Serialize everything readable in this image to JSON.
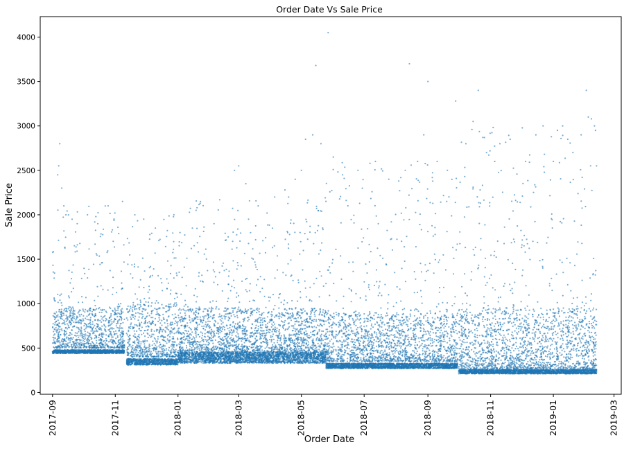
{
  "chart_data": {
    "type": "scatter",
    "title": "Order Date Vs Sale Price",
    "xlabel": "Order Date",
    "ylabel": "Sale Price",
    "xlim": [
      "2017-08-20",
      "2019-03-08"
    ],
    "ylim": [
      -20,
      4230
    ],
    "x_ticks": [
      "2017-09",
      "2017-11",
      "2018-01",
      "2018-03",
      "2018-05",
      "2018-07",
      "2018-09",
      "2018-11",
      "2019-01",
      "2019-03"
    ],
    "y_ticks": [
      0,
      500,
      1000,
      1500,
      2000,
      2500,
      3000,
      3500,
      4000
    ],
    "grid": false,
    "legend": "none",
    "marker_color": "#1f77b4",
    "marker_alpha": 0.6,
    "x_range_of_data": [
      "2017-09-01",
      "2019-02-12"
    ],
    "density_bands": [
      {
        "from": "2017-09-01",
        "to": "2017-11-10",
        "low": [
          440,
          480
        ],
        "mid": [
          500,
          950
        ],
        "sparse_top": 2100
      },
      {
        "from": "2017-11-12",
        "to": "2018-01-01",
        "low": [
          310,
          380
        ],
        "mid": [
          400,
          1000
        ],
        "sparse_top": 2000
      },
      {
        "from": "2018-01-01",
        "to": "2018-05-25",
        "low": [
          330,
          450
        ],
        "mid": [
          450,
          950
        ],
        "sparse_top": 2200
      },
      {
        "from": "2018-05-25",
        "to": "2018-09-30",
        "low": [
          270,
          330
        ],
        "mid": [
          350,
          900
        ],
        "sparse_top": 2600
      },
      {
        "from": "2018-10-01",
        "to": "2019-02-12",
        "low": [
          210,
          260
        ],
        "mid": [
          270,
          950
        ],
        "sparse_top": 3000
      }
    ],
    "series": [
      {
        "points": [
          [
            "2017-09-08",
            2800
          ],
          [
            "2017-09-07",
            2550
          ],
          [
            "2017-09-06",
            2450
          ],
          [
            "2017-09-10",
            2300
          ],
          [
            "2017-09-12",
            2100
          ],
          [
            "2017-09-14",
            2000
          ],
          [
            "2017-09-20",
            1950
          ],
          [
            "2017-09-25",
            1900
          ],
          [
            "2017-10-05",
            2000
          ],
          [
            "2017-10-15",
            1900
          ],
          [
            "2017-10-25",
            2100
          ],
          [
            "2017-11-08",
            2150
          ],
          [
            "2017-11-20",
            2000
          ],
          [
            "2017-12-10",
            1850
          ],
          [
            "2017-12-28",
            2000
          ],
          [
            "2018-01-15",
            1850
          ],
          [
            "2018-02-05",
            1900
          ],
          [
            "2018-02-25",
            2500
          ],
          [
            "2018-03-01",
            2550
          ],
          [
            "2018-03-08",
            2350
          ],
          [
            "2018-03-20",
            2100
          ],
          [
            "2018-04-05",
            2200
          ],
          [
            "2018-04-15",
            2280
          ],
          [
            "2018-04-25",
            2400
          ],
          [
            "2018-05-01",
            2500
          ],
          [
            "2018-05-05",
            2850
          ],
          [
            "2018-05-12",
            2900
          ],
          [
            "2018-05-15",
            3680
          ],
          [
            "2018-05-20",
            2800
          ],
          [
            "2018-05-27",
            4050
          ],
          [
            "2018-06-01",
            2650
          ],
          [
            "2018-06-10",
            2450
          ],
          [
            "2018-06-25",
            2500
          ],
          [
            "2018-07-12",
            2600
          ],
          [
            "2018-07-25",
            2400
          ],
          [
            "2018-08-10",
            2500
          ],
          [
            "2018-08-14",
            3700
          ],
          [
            "2018-08-22",
            2600
          ],
          [
            "2018-08-28",
            2900
          ],
          [
            "2018-09-01",
            3500
          ],
          [
            "2018-09-10",
            2600
          ],
          [
            "2018-09-20",
            2500
          ],
          [
            "2018-09-28",
            3280
          ],
          [
            "2018-10-08",
            2800
          ],
          [
            "2018-10-15",
            3050
          ],
          [
            "2018-10-20",
            3400
          ],
          [
            "2018-10-28",
            2700
          ],
          [
            "2018-11-05",
            2600
          ],
          [
            "2018-11-10",
            2800
          ],
          [
            "2018-11-20",
            2850
          ],
          [
            "2018-12-05",
            2600
          ],
          [
            "2018-12-15",
            2900
          ],
          [
            "2018-12-22",
            3000
          ],
          [
            "2019-01-01",
            2600
          ],
          [
            "2019-01-05",
            2950
          ],
          [
            "2019-01-10",
            3000
          ],
          [
            "2019-01-15",
            2850
          ],
          [
            "2019-01-20",
            2700
          ],
          [
            "2019-01-28",
            2900
          ],
          [
            "2019-02-02",
            3400
          ],
          [
            "2019-02-04",
            3100
          ],
          [
            "2019-02-07",
            3080
          ],
          [
            "2019-02-10",
            3000
          ],
          [
            "2019-02-11",
            2950
          ],
          [
            "2019-02-12",
            2550
          ]
        ]
      }
    ]
  }
}
